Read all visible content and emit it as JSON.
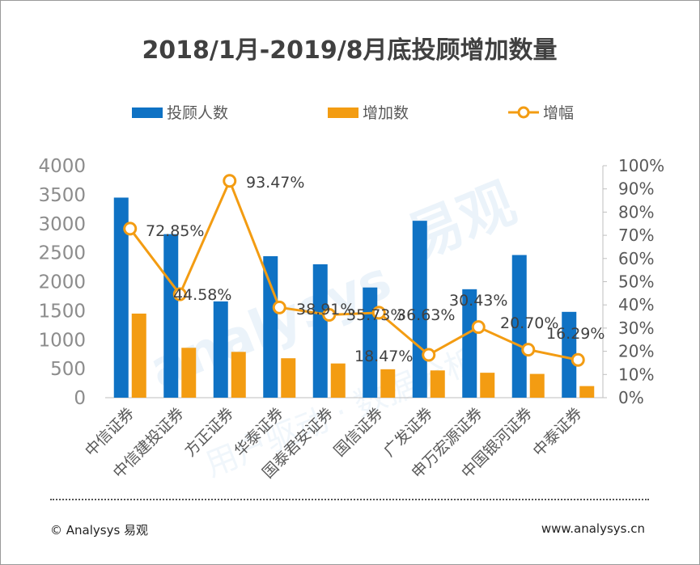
{
  "chart_data": {
    "type": "bar",
    "title": "2018/1月-2019/8月底投顾增加数量",
    "categories": [
      "中信证券",
      "中信建投证券",
      "方正证券",
      "华泰证券",
      "国泰君安证券",
      "国信证券",
      "广发证券",
      "申万宏源证券",
      "中国银河证券",
      "中泰证券"
    ],
    "series": [
      {
        "name": "投顾人数",
        "type": "bar",
        "axis": "left",
        "color": "#0f72c4",
        "values": [
          3450,
          2820,
          1660,
          2440,
          2300,
          1900,
          3050,
          1870,
          2460,
          1480
        ]
      },
      {
        "name": "增加数",
        "type": "bar",
        "axis": "left",
        "color": "#f39c12",
        "values": [
          1450,
          860,
          790,
          680,
          590,
          490,
          470,
          430,
          410,
          200
        ]
      },
      {
        "name": "增幅",
        "type": "line",
        "axis": "right",
        "color": "#f39c12",
        "values": [
          72.85,
          44.58,
          93.47,
          38.91,
          35.73,
          36.63,
          18.47,
          30.43,
          20.7,
          16.29
        ],
        "labels": [
          "72.85%",
          "44.58%",
          "93.47%",
          "38.91%",
          "35.73%",
          "36.63%",
          "18.47%",
          "30.43%",
          "20.70%",
          "16.29%"
        ]
      }
    ],
    "yleft": {
      "min": 0,
      "max": 4000,
      "ticks": [
        "0",
        "500",
        "1000",
        "1500",
        "2000",
        "2500",
        "3000",
        "3500",
        "4000"
      ]
    },
    "yright": {
      "min": 0,
      "max": 100,
      "ticks": [
        "0%",
        "10%",
        "20%",
        "30%",
        "40%",
        "50%",
        "60%",
        "70%",
        "80%",
        "90%",
        "100%"
      ]
    },
    "legend_position": "top"
  },
  "footer": {
    "source": "© Analysys 易观",
    "website": "www.analysys.cn"
  },
  "watermark": {
    "brand_latin": "analysys",
    "brand_cn": "易观",
    "tagline": "用户驱动 · 数据分析"
  }
}
